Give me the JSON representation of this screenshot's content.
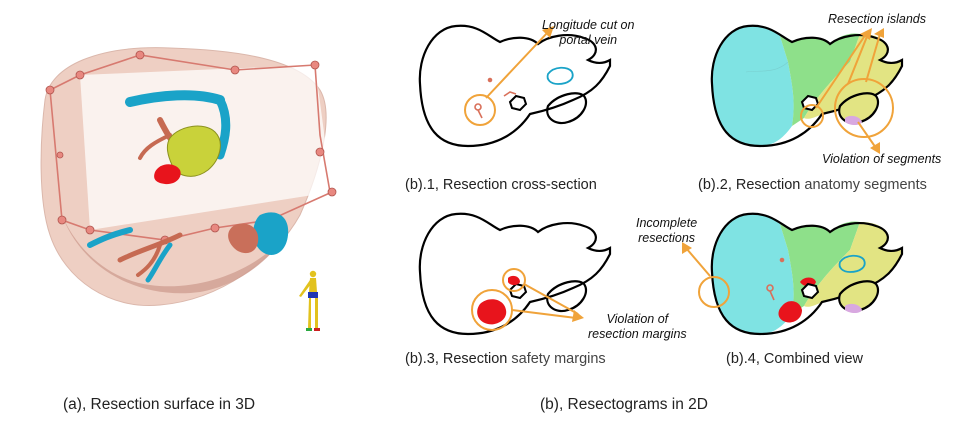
{
  "colors": {
    "outline": "#000000",
    "annotation": "#f0a33a",
    "red_region": "#e8141c",
    "portal_vessel": "#d9705a",
    "hepatic_vessel": "#1aa3c8",
    "segment_cyan": "#7fe3e3",
    "segment_green": "#8ee08a",
    "segment_yellow": "#e2e483",
    "segment_purple": "#d8a8e0",
    "liver_3d": "#e9bfb0",
    "tumor_3d": "#c9d23a",
    "plane_frame": "#d77a70"
  },
  "panel_a": {
    "caption": "(a), Resection surface in 3D"
  },
  "panel_b": {
    "group_caption": "(b), Resectograms in 2D",
    "b1": {
      "caption": "(b).1, Resection cross-section",
      "annotation": [
        "Longitude cut on",
        "portal vein"
      ]
    },
    "b2": {
      "caption_prefix": "(b).2, Resection ",
      "caption_rest": "anatomy segments",
      "annotation_top": "Resection islands",
      "annotation_bottom": "Violation of segments"
    },
    "b3": {
      "caption_prefix": "(b).3, Resection ",
      "caption_rest": "safety margins",
      "annotation": [
        "Violation of",
        "resection margins"
      ]
    },
    "b4": {
      "caption": "(b).4, Combined view",
      "annotation": [
        "Incomplete",
        "resections"
      ]
    }
  }
}
